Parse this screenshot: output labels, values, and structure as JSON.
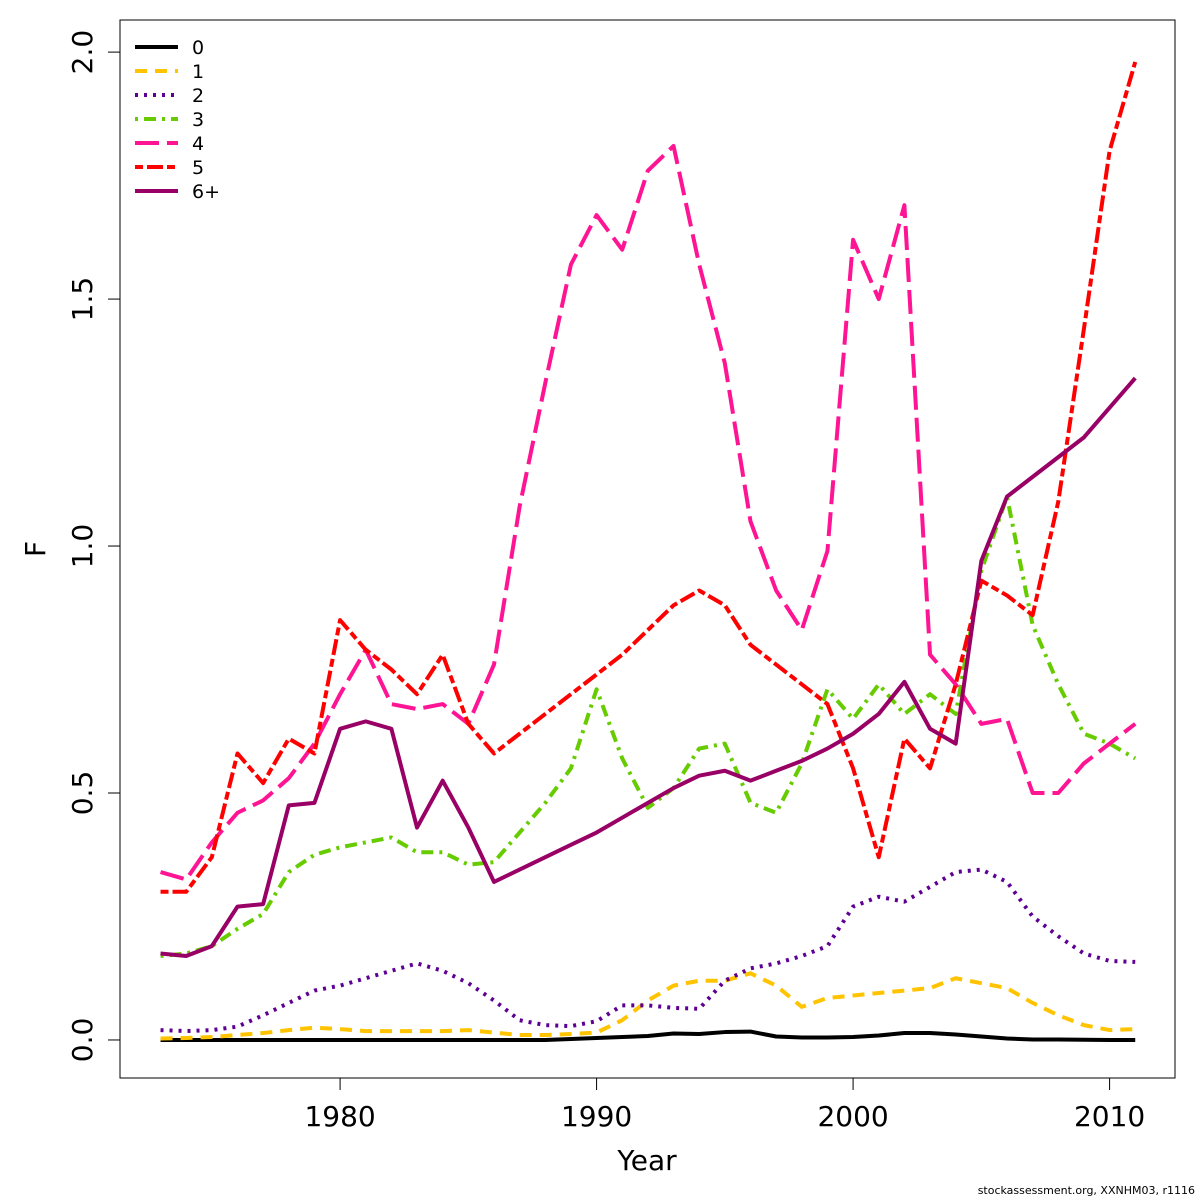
{
  "chart_data": {
    "type": "line",
    "x_label": "Year",
    "y_label": "F",
    "footer": "stockassessment.org, XXNHM03, r1116",
    "x": [
      1973,
      1974,
      1975,
      1976,
      1977,
      1978,
      1979,
      1980,
      1981,
      1982,
      1983,
      1984,
      1985,
      1986,
      1987,
      1988,
      1989,
      1990,
      1991,
      1992,
      1993,
      1994,
      1995,
      1996,
      1997,
      1998,
      1999,
      2000,
      2001,
      2002,
      2003,
      2004,
      2005,
      2006,
      2007,
      2008,
      2009,
      2010,
      2011
    ],
    "xlim": [
      1971.42,
      2012.55
    ],
    "xticks": [
      1980,
      1990,
      2000,
      2010
    ],
    "ylim": [
      -0.077,
      2.065
    ],
    "yticks": [
      {
        "value": 0,
        "label": "0.0"
      },
      0.5,
      {
        "value": 1,
        "label": "1.0"
      },
      1.5,
      {
        "value": 2,
        "label": "2.0"
      }
    ],
    "legend": "top-left",
    "series": [
      {
        "name": "0",
        "color": "#000000",
        "dash": "solid",
        "values": [
          0,
          0,
          0,
          0,
          0,
          0,
          0,
          0,
          0,
          0,
          0,
          0,
          0,
          0,
          0,
          0,
          0.002,
          0.004,
          0.006,
          0.008,
          0.013,
          0.012,
          0.016,
          0.017,
          0.007,
          0.005,
          0.005,
          0.006,
          0.009,
          0.014,
          0.014,
          0.011,
          0.007,
          0.003,
          0.001,
          0.001,
          0.0005,
          0,
          0
        ]
      },
      {
        "name": "1",
        "color": "#FFC300",
        "dash": "dashed",
        "values": [
          0.003,
          0.004,
          0.006,
          0.01,
          0.014,
          0.02,
          0.025,
          0.022,
          0.018,
          0.018,
          0.018,
          0.018,
          0.02,
          0.015,
          0.01,
          0.01,
          0.012,
          0.015,
          0.04,
          0.08,
          0.11,
          0.12,
          0.12,
          0.135,
          0.11,
          0.067,
          0.085,
          0.09,
          0.095,
          0.1,
          0.105,
          0.125,
          0.115,
          0.105,
          0.075,
          0.05,
          0.03,
          0.02,
          0.022
        ]
      },
      {
        "name": "2",
        "color": "#5E0094",
        "dash": "dotted",
        "values": [
          0.02,
          0.018,
          0.02,
          0.027,
          0.05,
          0.075,
          0.1,
          0.11,
          0.125,
          0.14,
          0.155,
          0.14,
          0.115,
          0.08,
          0.04,
          0.03,
          0.028,
          0.038,
          0.07,
          0.07,
          0.065,
          0.063,
          0.12,
          0.145,
          0.155,
          0.17,
          0.19,
          0.27,
          0.29,
          0.28,
          0.31,
          0.34,
          0.345,
          0.32,
          0.25,
          0.21,
          0.175,
          0.16,
          0.158
        ]
      },
      {
        "name": "3",
        "color": "#66CC00",
        "dash": "dotdash",
        "values": [
          0.17,
          0.175,
          0.19,
          0.225,
          0.255,
          0.34,
          0.375,
          0.39,
          0.4,
          0.41,
          0.38,
          0.38,
          0.355,
          0.36,
          0.42,
          0.48,
          0.55,
          0.71,
          0.57,
          0.47,
          0.51,
          0.59,
          0.6,
          0.48,
          0.46,
          0.56,
          0.71,
          0.65,
          0.72,
          0.66,
          0.7,
          0.66,
          0.95,
          1.1,
          0.84,
          0.72,
          0.62,
          0.6,
          0.57
        ]
      },
      {
        "name": "4",
        "color": "#FF1493",
        "dash": "longdash",
        "values": [
          0.34,
          0.325,
          0.4,
          0.46,
          0.485,
          0.53,
          0.6,
          0.7,
          0.79,
          0.68,
          0.67,
          0.68,
          0.64,
          0.76,
          1.08,
          1.33,
          1.57,
          1.67,
          1.6,
          1.76,
          1.81,
          1.57,
          1.37,
          1.05,
          0.91,
          0.83,
          0.99,
          1.62,
          1.5,
          1.69,
          0.78,
          0.72,
          0.64,
          0.65,
          0.5,
          0.5,
          0.56,
          0.6,
          0.64
        ]
      },
      {
        "name": "5",
        "color": "#FF0000",
        "dash": "twodash",
        "values": [
          0.3,
          0.3,
          0.37,
          0.58,
          0.52,
          0.61,
          0.58,
          0.85,
          0.79,
          0.75,
          0.7,
          0.78,
          0.64,
          0.58,
          0.62,
          0.66,
          0.7,
          0.74,
          0.78,
          0.83,
          0.88,
          0.91,
          0.88,
          0.8,
          0.76,
          0.72,
          0.68,
          0.55,
          0.37,
          0.61,
          0.55,
          0.72,
          0.93,
          0.9,
          0.86,
          1.09,
          1.44,
          1.8,
          1.98
        ]
      },
      {
        "name": "6+",
        "color": "#990066",
        "dash": "solid",
        "values": [
          0.175,
          0.17,
          0.19,
          0.27,
          0.275,
          0.475,
          0.48,
          0.63,
          0.645,
          0.63,
          0.43,
          0.525,
          0.43,
          0.32,
          0.345,
          0.37,
          0.395,
          0.42,
          0.45,
          0.48,
          0.51,
          0.535,
          0.545,
          0.525,
          0.545,
          0.565,
          0.59,
          0.62,
          0.66,
          0.725,
          0.63,
          0.6,
          0.97,
          1.1,
          1.14,
          1.18,
          1.22,
          1.28,
          1.34
        ]
      }
    ]
  }
}
